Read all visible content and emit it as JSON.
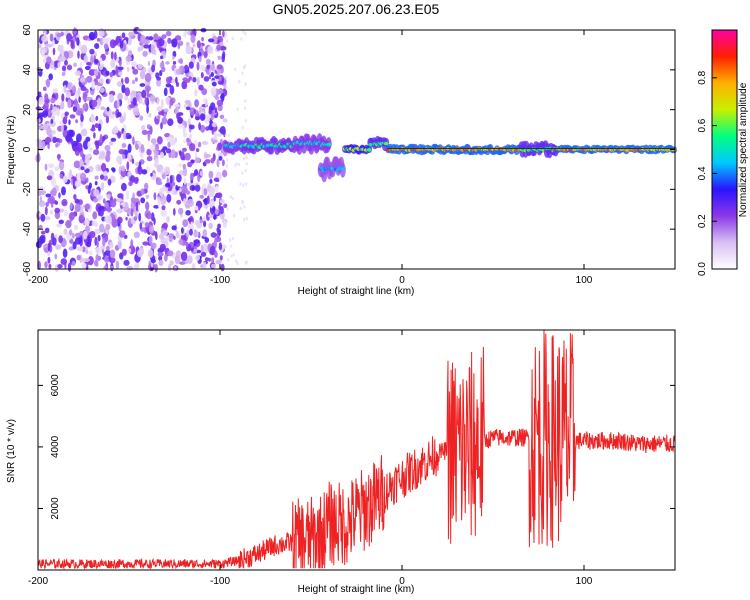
{
  "title": "GN05.2025.207.06.23.E05",
  "chart_data": [
    {
      "type": "heatmap",
      "xlabel": "Height of straight line (km)",
      "ylabel": "Frequency (Hz)",
      "xlim": [
        -200,
        150
      ],
      "ylim": [
        -60,
        60
      ],
      "xticks": [
        -200,
        -100,
        0,
        100
      ],
      "yticks": [
        -60,
        -40,
        -20,
        0,
        20,
        40,
        60
      ],
      "colorbar": {
        "label": "Normalized spectral amplitude",
        "range": [
          0,
          1
        ],
        "ticks": [
          "0.0",
          "0.2",
          "0.4",
          "0.6",
          "0.8"
        ],
        "colors": [
          "#ffffff",
          "#d9c0f2",
          "#8a38e8",
          "#2a14ff",
          "#00c8ff",
          "#00ff80",
          "#c8f000",
          "#ffb000",
          "#ff2000",
          "#ff00a0"
        ]
      },
      "noise_region_km": [
        -200,
        -97
      ],
      "ridges": [
        {
          "x0": -98,
          "x1": -88,
          "y": 2,
          "spread": 4,
          "amp": 0.5
        },
        {
          "x0": -88,
          "x1": -60,
          "y": 2,
          "spread": 4,
          "amp": 0.55
        },
        {
          "x0": -60,
          "x1": -40,
          "y": 3,
          "spread": 5,
          "amp": 0.5
        },
        {
          "x0": -45,
          "x1": -32,
          "y": -10,
          "spread": 6,
          "amp": 0.45
        },
        {
          "x0": -32,
          "x1": -18,
          "y": 0,
          "spread": 2,
          "amp": 0.7
        },
        {
          "x0": -18,
          "x1": -8,
          "y": 3,
          "spread": 3,
          "amp": 0.6
        },
        {
          "x0": -8,
          "x1": 65,
          "y": 0,
          "spread": 2,
          "amp": 0.85
        },
        {
          "x0": 65,
          "x1": 85,
          "y": 0,
          "spread": 4,
          "amp": 0.6
        },
        {
          "x0": 85,
          "x1": 150,
          "y": 0,
          "spread": 1.5,
          "amp": 0.85
        }
      ]
    },
    {
      "type": "line",
      "xlabel": "Height of straight line (km)",
      "ylabel": "SNR (10 * v/v)",
      "xlim": [
        -200,
        150
      ],
      "ylim": [
        0,
        7800
      ],
      "xticks": [
        -200,
        -100,
        0,
        100
      ],
      "yticks": [
        2000,
        4000,
        6000
      ],
      "color": "#ee2222",
      "series": [
        {
          "x": [
            -200,
            -180,
            -160,
            -140,
            -120,
            -100,
            -90,
            -80,
            -70,
            -60,
            -50,
            -45,
            -40,
            -35,
            -30,
            -25,
            -20,
            -15,
            -10,
            -5,
            0,
            5,
            10,
            15,
            20,
            25,
            30,
            35,
            40,
            45,
            50,
            55,
            60,
            65,
            70,
            75,
            80,
            85,
            90,
            95,
            100,
            110,
            120,
            130,
            140,
            150
          ],
          "y": [
            200,
            200,
            200,
            200,
            200,
            200,
            300,
            500,
            800,
            900,
            1000,
            1100,
            1500,
            1500,
            1500,
            1800,
            2000,
            2200,
            2500,
            2800,
            3000,
            3200,
            3400,
            3600,
            3800,
            3900,
            3900,
            3900,
            4000,
            4200,
            4300,
            4300,
            4300,
            4300,
            4300,
            4300,
            4300,
            4300,
            4300,
            4200,
            4200,
            4200,
            4200,
            4100,
            4100,
            4100
          ]
        }
      ]
    }
  ]
}
